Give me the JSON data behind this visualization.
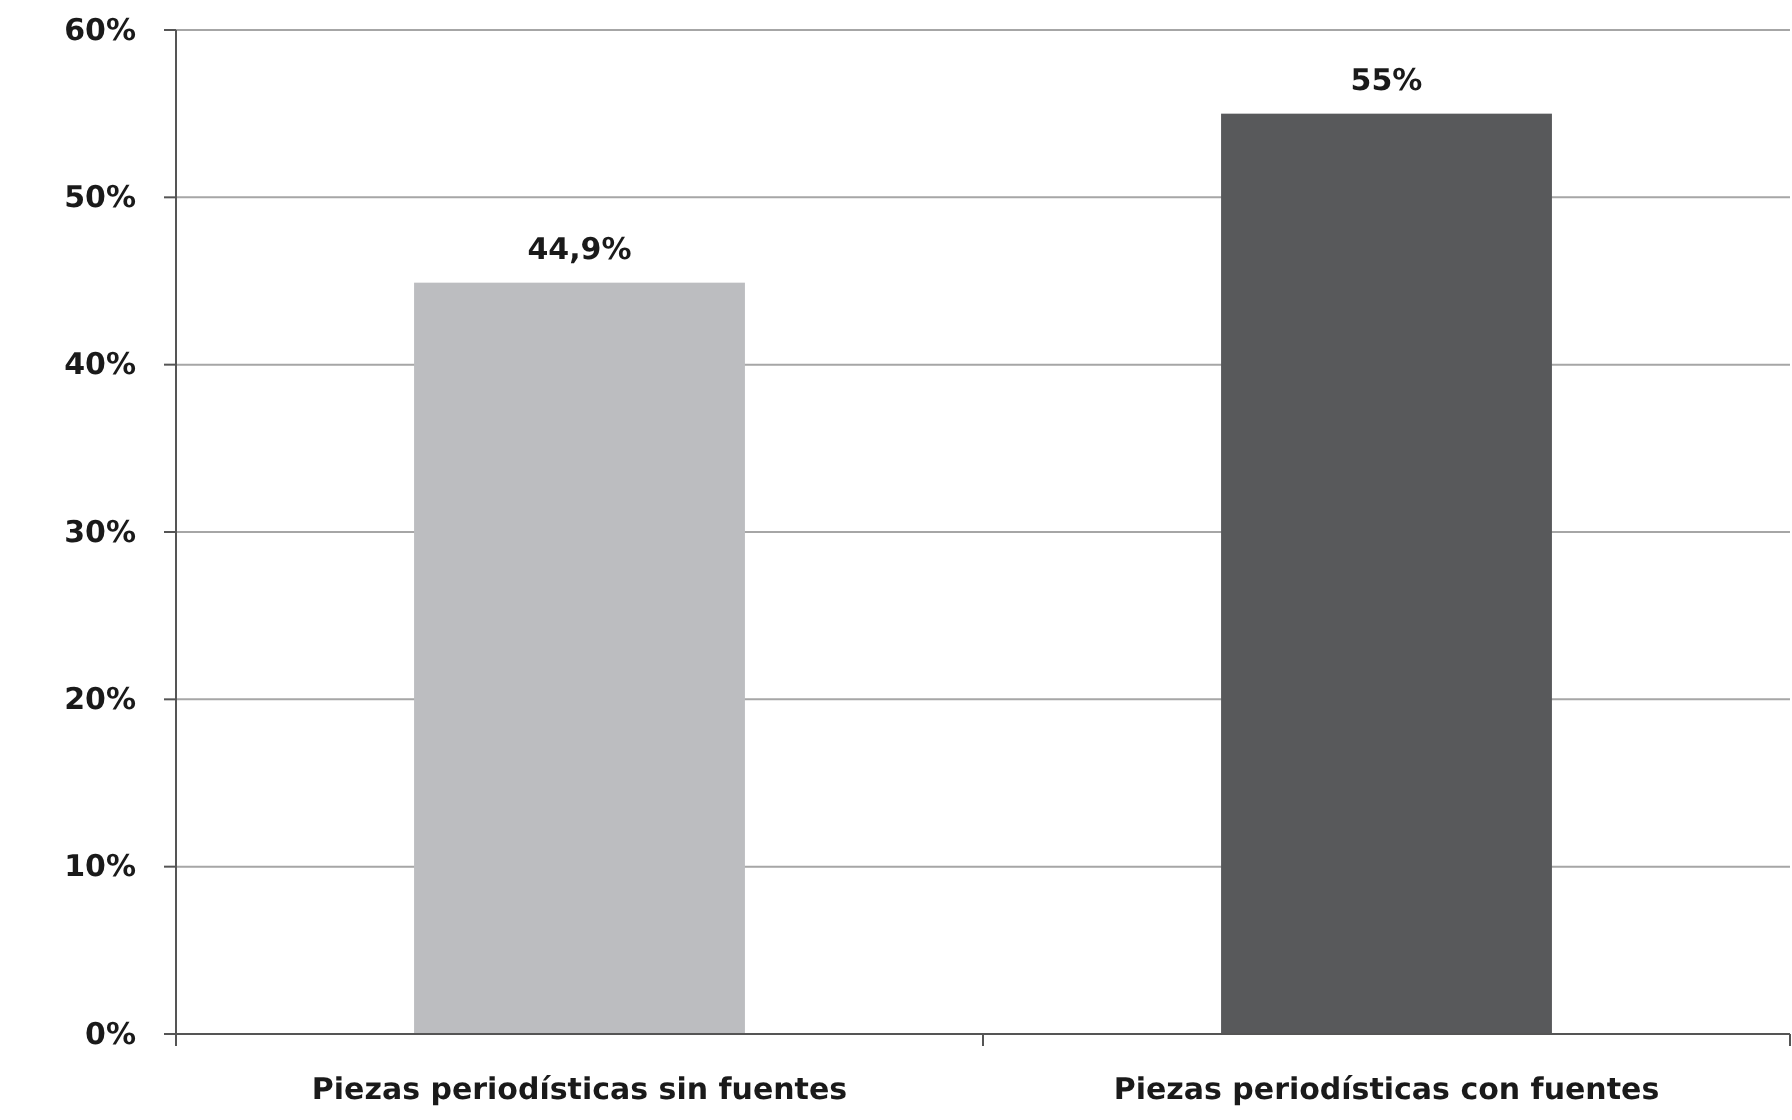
{
  "chart_data": {
    "type": "bar",
    "categories": [
      "Piezas periodísticas sin fuentes",
      "Piezas periodísticas con fuentes"
    ],
    "values": [
      44.9,
      55
    ],
    "colors": [
      "#bcbdc0",
      "#58595b"
    ],
    "value_labels": [
      "44,9%",
      "55%"
    ],
    "ylim": [
      0,
      60
    ],
    "yticks": [
      {
        "value": 0,
        "label": "0%"
      },
      {
        "value": 10,
        "label": "10%"
      },
      {
        "value": 20,
        "label": "20%"
      },
      {
        "value": 30,
        "label": "30%"
      },
      {
        "value": 40,
        "label": "40%"
      },
      {
        "value": 50,
        "label": "50%"
      },
      {
        "value": 60,
        "label": "60%"
      }
    ],
    "grid": "y"
  }
}
